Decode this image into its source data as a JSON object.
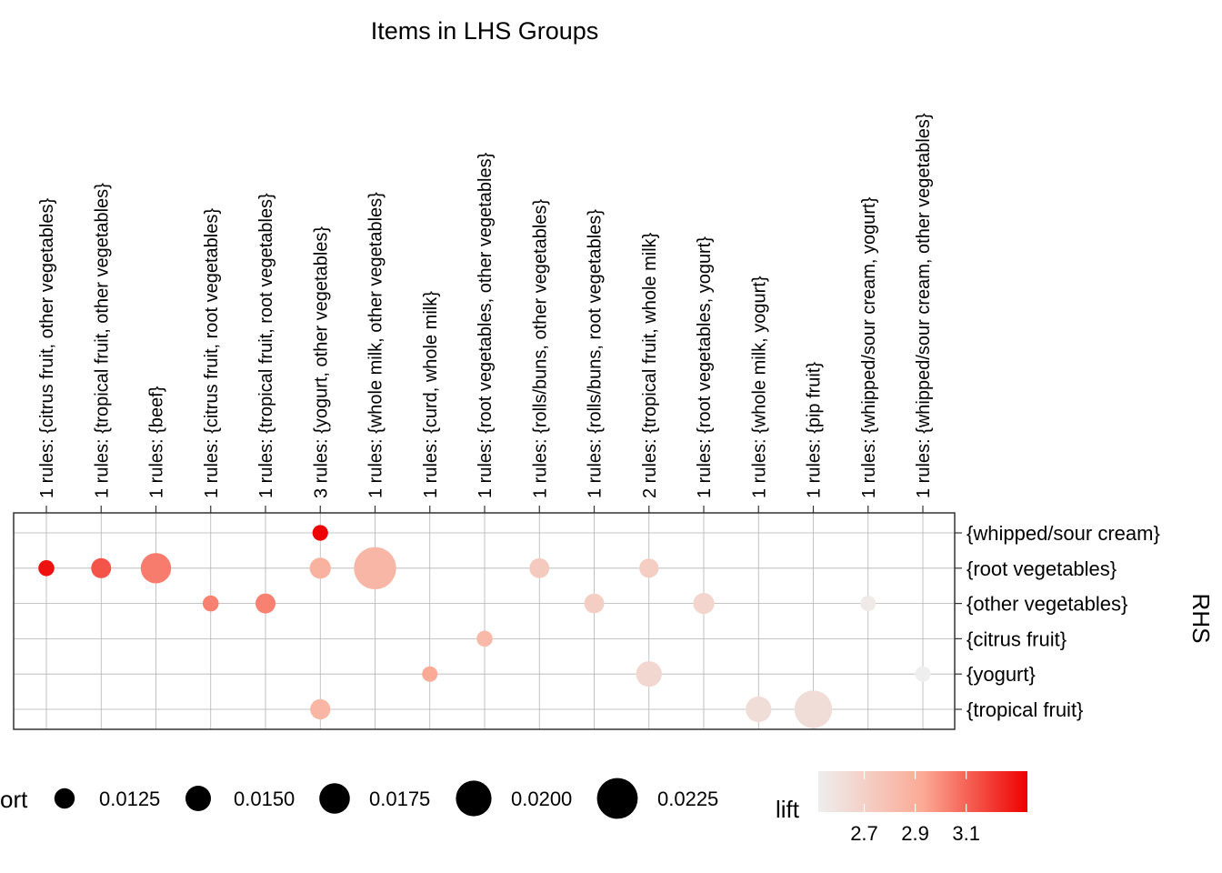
{
  "chart_data": {
    "type": "scatter",
    "title": "Items in LHS Groups",
    "ylabel": "RHS",
    "lhs_groups": [
      "1 rules: {citrus fruit, other vegetables}",
      "1 rules: {tropical fruit, other vegetables}",
      "1 rules: {beef}",
      "1 rules: {citrus fruit, root vegetables}",
      "1 rules: {tropical fruit, root vegetables}",
      "3 rules: {yogurt, other vegetables}",
      "1 rules: {whole milk, other vegetables}",
      "1 rules: {curd, whole milk}",
      "1 rules: {root vegetables, other vegetables}",
      "1 rules: {rolls/buns, other vegetables}",
      "1 rules: {rolls/buns, root vegetables}",
      "2 rules: {tropical fruit, whole milk}",
      "1 rules: {root vegetables, yogurt}",
      "1 rules: {whole milk, yogurt}",
      "1 rules: {pip fruit}",
      "1 rules: {whipped/sour cream, yogurt}",
      "1 rules: {whipped/sour cream, other vegetables}"
    ],
    "rhs_items": [
      "{whipped/sour cream}",
      "{root vegetables}",
      "{other vegetables}",
      "{citrus fruit}",
      "{yogurt}",
      "{tropical fruit}"
    ],
    "points": [
      {
        "lhs": 0,
        "rhs": 1,
        "support": 0.0104,
        "lift": 3.3
      },
      {
        "lhs": 1,
        "rhs": 1,
        "support": 0.0123,
        "lift": 3.14
      },
      {
        "lhs": 2,
        "rhs": 1,
        "support": 0.0174,
        "lift": 3.04
      },
      {
        "lhs": 3,
        "rhs": 2,
        "support": 0.0104,
        "lift": 3.03
      },
      {
        "lhs": 4,
        "rhs": 2,
        "support": 0.0123,
        "lift": 3.03
      },
      {
        "lhs": 5,
        "rhs": 0,
        "support": 0.0102,
        "lift": 3.34
      },
      {
        "lhs": 5,
        "rhs": 1,
        "support": 0.0129,
        "lift": 2.88
      },
      {
        "lhs": 5,
        "rhs": 5,
        "support": 0.0124,
        "lift": 2.86
      },
      {
        "lhs": 6,
        "rhs": 1,
        "support": 0.0232,
        "lift": 2.85
      },
      {
        "lhs": 7,
        "rhs": 4,
        "support": 0.0101,
        "lift": 2.93
      },
      {
        "lhs": 8,
        "rhs": 3,
        "support": 0.0104,
        "lift": 2.84
      },
      {
        "lhs": 9,
        "rhs": 1,
        "support": 0.0122,
        "lift": 2.74
      },
      {
        "lhs": 10,
        "rhs": 2,
        "support": 0.0122,
        "lift": 2.72
      },
      {
        "lhs": 11,
        "rhs": 1,
        "support": 0.012,
        "lift": 2.72
      },
      {
        "lhs": 11,
        "rhs": 4,
        "support": 0.0151,
        "lift": 2.66
      },
      {
        "lhs": 12,
        "rhs": 2,
        "support": 0.0129,
        "lift": 2.67
      },
      {
        "lhs": 13,
        "rhs": 5,
        "support": 0.0151,
        "lift": 2.62
      },
      {
        "lhs": 14,
        "rhs": 5,
        "support": 0.021,
        "lift": 2.62
      },
      {
        "lhs": 15,
        "rhs": 2,
        "support": 0.0101,
        "lift": 2.55
      },
      {
        "lhs": 16,
        "rhs": 4,
        "support": 0.0101,
        "lift": 2.52
      }
    ],
    "size_legend": {
      "title": "ort",
      "values": [
        0.0125,
        0.015,
        0.0175,
        0.02,
        0.0225
      ],
      "labels": [
        "0.0125",
        "0.0150",
        "0.0175",
        "0.0200",
        "0.0225"
      ]
    },
    "color_legend": {
      "title": "lift",
      "min": 2.52,
      "max": 3.34,
      "ticks": [
        2.7,
        2.9,
        3.1
      ],
      "tick_labels": [
        "2.7",
        "2.9",
        "3.1"
      ],
      "low_color": "#eeeeee",
      "high_color": "#ee0000"
    },
    "grid": true
  }
}
